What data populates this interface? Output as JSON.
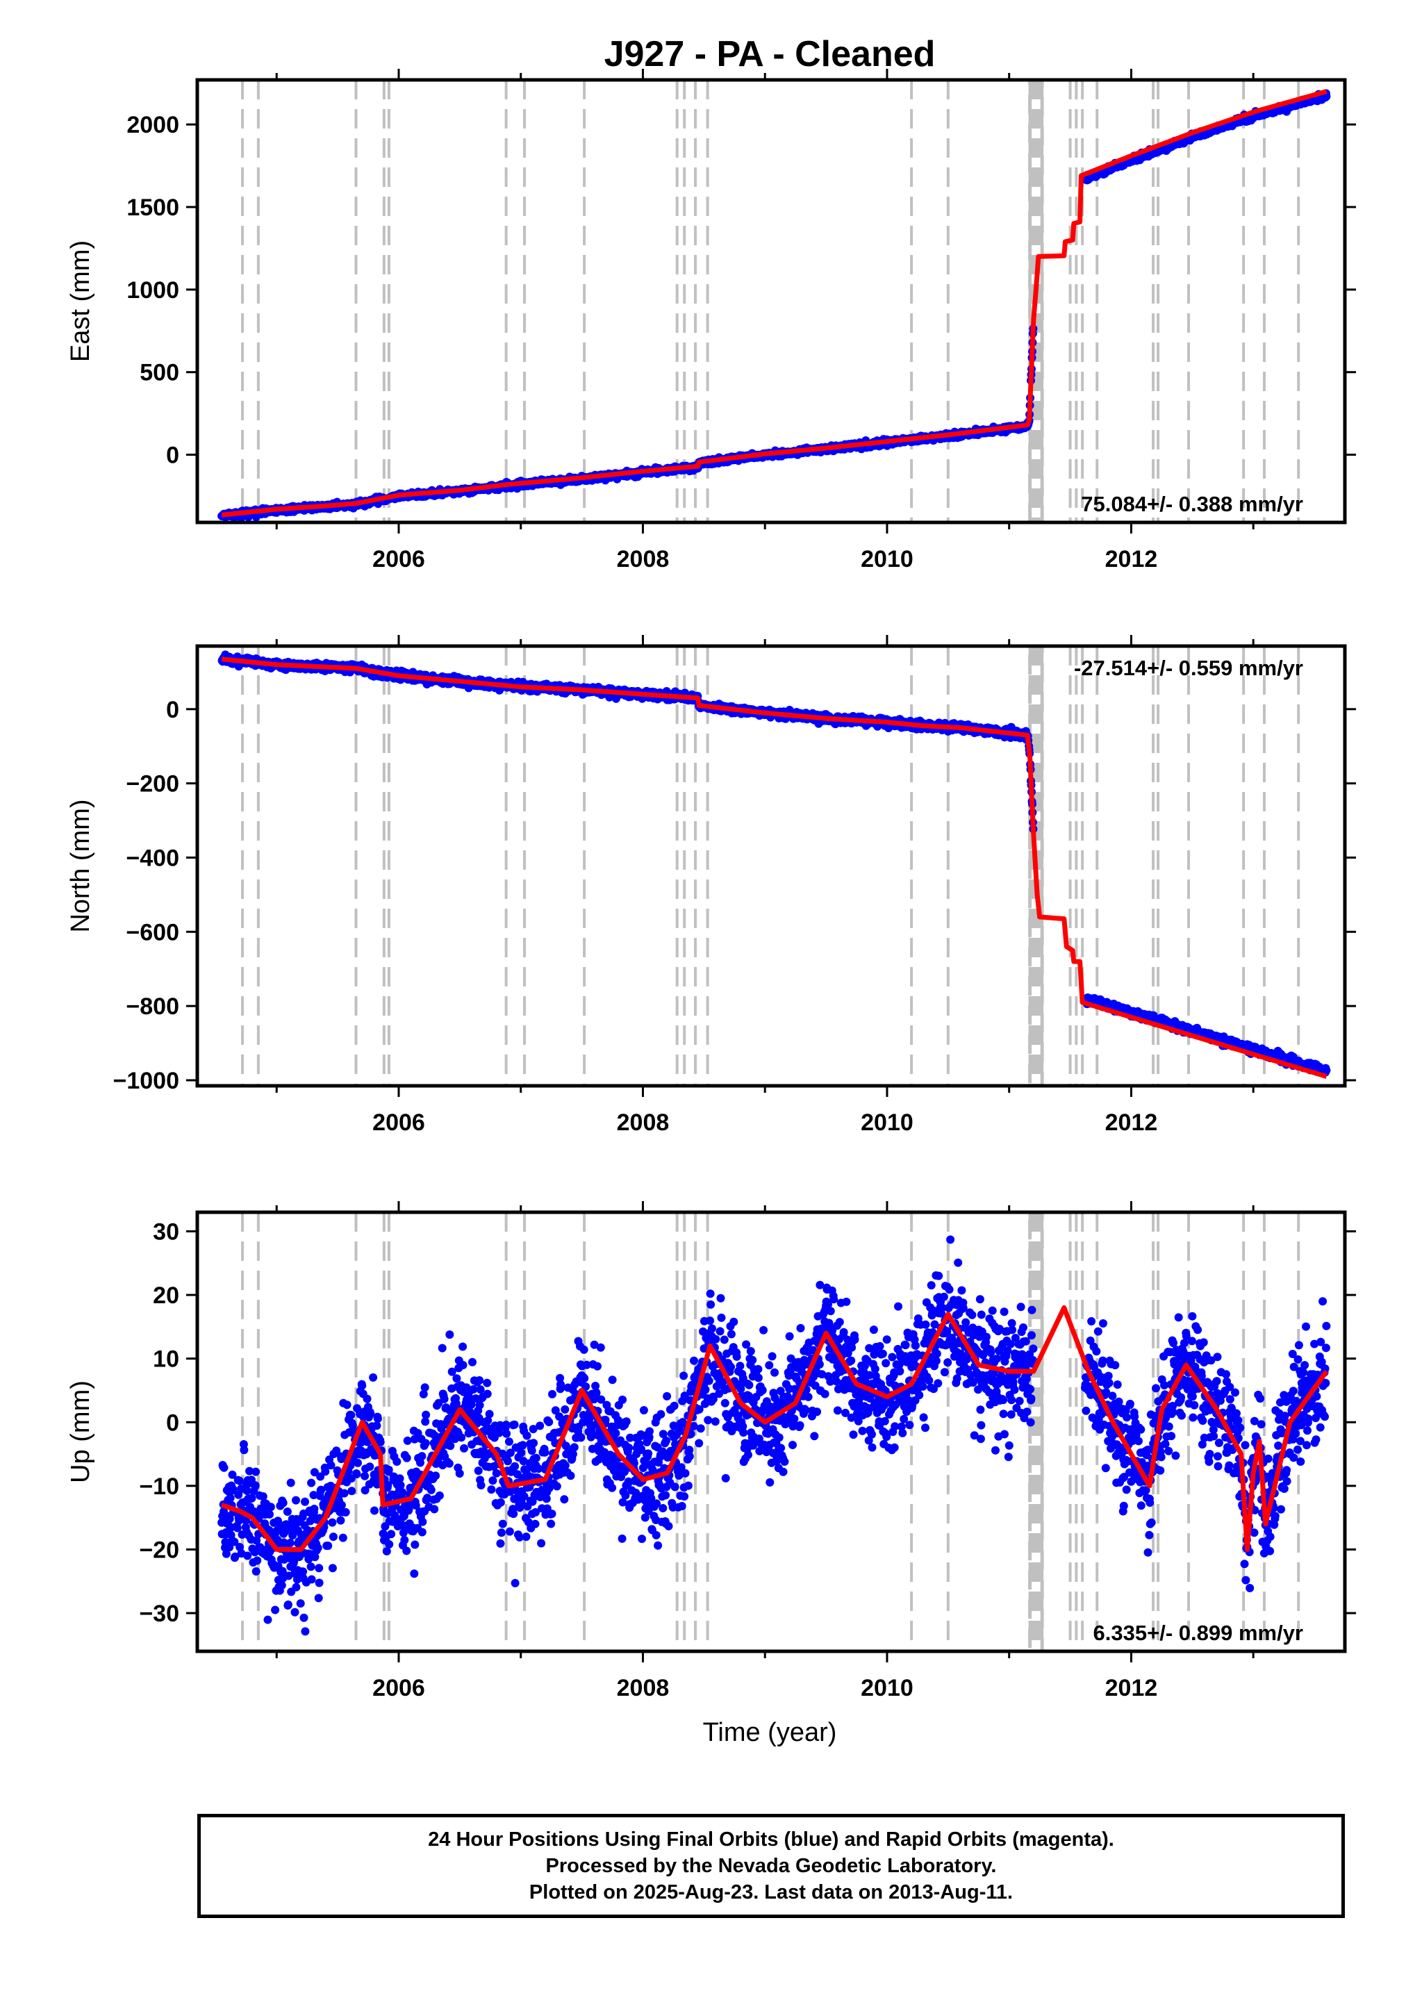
{
  "title": "J927  - PA - Cleaned",
  "x_axis_label": "Time (year)",
  "colors": {
    "final_orbits": "#0000ff",
    "model_fit": "#ff0000",
    "event_lines": "#c0c0c0",
    "axes": "#000000"
  },
  "footer": {
    "line1": "24 Hour Positions Using Final Orbits (blue) and Rapid Orbits (magenta).",
    "line2": "Processed by the Nevada Geodetic Laboratory.",
    "line3": "Plotted on 2025-Aug-23. Last data on 2013-Aug-11."
  },
  "chart_data": [
    {
      "type": "scatter",
      "component": "East",
      "ylabel": "East (mm)",
      "xlim": [
        2004.35,
        2013.75
      ],
      "ylim": [
        -410,
        2270
      ],
      "yticks": [
        0,
        500,
        1000,
        1500,
        2000
      ],
      "xticks": [
        2006,
        2008,
        2010,
        2012
      ],
      "rate_label": "75.084+/- 0.388 mm/yr",
      "rate_position": "bottom-right",
      "model_fit": [
        [
          2004.55,
          -365
        ],
        [
          2005.0,
          -330
        ],
        [
          2005.4,
          -310
        ],
        [
          2005.65,
          -295
        ],
        [
          2006.0,
          -245
        ],
        [
          2006.5,
          -215
        ],
        [
          2006.9,
          -180
        ],
        [
          2007.5,
          -140
        ],
        [
          2008.0,
          -100
        ],
        [
          2008.45,
          -70
        ],
        [
          2008.46,
          -45
        ],
        [
          2009.0,
          5
        ],
        [
          2009.5,
          40
        ],
        [
          2010.0,
          80
        ],
        [
          2010.5,
          120
        ],
        [
          2011.15,
          180
        ],
        [
          2011.165,
          210
        ],
        [
          2011.2,
          820
        ],
        [
          2011.22,
          1000
        ],
        [
          2011.24,
          1200
        ],
        [
          2011.45,
          1205
        ],
        [
          2011.46,
          1290
        ],
        [
          2011.52,
          1300
        ],
        [
          2011.53,
          1400
        ],
        [
          2011.58,
          1410
        ],
        [
          2011.59,
          1690
        ],
        [
          2012.0,
          1810
        ],
        [
          2012.5,
          1950
        ],
        [
          2013.0,
          2075
        ],
        [
          2013.6,
          2200
        ]
      ],
      "observed": {
        "start": 2004.55,
        "end": 2013.6,
        "noise_mm": 8,
        "gap": [
          2011.2,
          2011.62
        ],
        "offset_before": -6,
        "offset_after": -25
      }
    },
    {
      "type": "scatter",
      "component": "North",
      "ylabel": "North (mm)",
      "xlim": [
        2004.35,
        2013.75
      ],
      "ylim": [
        -1015,
        170
      ],
      "yticks": [
        -1000,
        -800,
        -600,
        -400,
        -200,
        0
      ],
      "xticks": [
        2006,
        2008,
        2010,
        2012
      ],
      "rate_label": "-27.514+/- 0.559 mm/yr",
      "rate_position": "top-right",
      "model_fit": [
        [
          2004.55,
          135
        ],
        [
          2005.0,
          120
        ],
        [
          2005.65,
          110
        ],
        [
          2006.0,
          90
        ],
        [
          2006.5,
          75
        ],
        [
          2007.0,
          60
        ],
        [
          2007.5,
          52
        ],
        [
          2008.0,
          40
        ],
        [
          2008.45,
          30
        ],
        [
          2008.46,
          10
        ],
        [
          2009.0,
          -10
        ],
        [
          2009.5,
          -25
        ],
        [
          2010.0,
          -35
        ],
        [
          2010.3,
          -45
        ],
        [
          2010.6,
          -50
        ],
        [
          2011.15,
          -70
        ],
        [
          2011.17,
          -130
        ],
        [
          2011.2,
          -340
        ],
        [
          2011.23,
          -500
        ],
        [
          2011.25,
          -560
        ],
        [
          2011.45,
          -565
        ],
        [
          2011.47,
          -640
        ],
        [
          2011.52,
          -650
        ],
        [
          2011.53,
          -680
        ],
        [
          2011.58,
          -680
        ],
        [
          2011.6,
          -790
        ],
        [
          2012.0,
          -830
        ],
        [
          2012.5,
          -880
        ],
        [
          2013.0,
          -930
        ],
        [
          2013.6,
          -990
        ]
      ],
      "observed": {
        "start": 2004.55,
        "end": 2013.6,
        "noise_mm": 5,
        "gap": [
          2011.2,
          2011.62
        ],
        "offset_before": 0,
        "offset_after": 12
      }
    },
    {
      "type": "scatter",
      "component": "Up",
      "ylabel": "Up (mm)",
      "xlim": [
        2004.35,
        2013.75
      ],
      "ylim": [
        -36,
        33
      ],
      "yticks": [
        -30,
        -20,
        -10,
        0,
        10,
        20,
        30
      ],
      "xticks": [
        2006,
        2008,
        2010,
        2012
      ],
      "rate_label": "6.335+/- 0.899 mm/yr",
      "rate_position": "bottom-right",
      "model_fit": [
        [
          2004.55,
          -13
        ],
        [
          2004.7,
          -14
        ],
        [
          2004.8,
          -15
        ],
        [
          2005.0,
          -20
        ],
        [
          2005.2,
          -20
        ],
        [
          2005.4,
          -15
        ],
        [
          2005.6,
          -5
        ],
        [
          2005.7,
          0
        ],
        [
          2005.85,
          -5
        ],
        [
          2005.87,
          -13
        ],
        [
          2006.1,
          -12
        ],
        [
          2006.5,
          2
        ],
        [
          2006.8,
          -5
        ],
        [
          2006.9,
          -10
        ],
        [
          2007.2,
          -9
        ],
        [
          2007.5,
          5
        ],
        [
          2007.8,
          -5
        ],
        [
          2008.0,
          -9
        ],
        [
          2008.2,
          -8
        ],
        [
          2008.35,
          -2
        ],
        [
          2008.55,
          12
        ],
        [
          2008.8,
          3
        ],
        [
          2009.0,
          0
        ],
        [
          2009.25,
          3
        ],
        [
          2009.5,
          14
        ],
        [
          2009.75,
          6
        ],
        [
          2010.0,
          4
        ],
        [
          2010.2,
          6
        ],
        [
          2010.5,
          17
        ],
        [
          2010.75,
          9
        ],
        [
          2011.0,
          8
        ],
        [
          2011.2,
          8
        ],
        [
          2011.45,
          18
        ],
        [
          2011.65,
          8
        ],
        [
          2011.85,
          0
        ],
        [
          2012.0,
          -5
        ],
        [
          2012.15,
          -10
        ],
        [
          2012.25,
          2
        ],
        [
          2012.45,
          9
        ],
        [
          2012.7,
          2
        ],
        [
          2012.9,
          -5
        ],
        [
          2012.95,
          -20
        ],
        [
          2013.0,
          -8
        ],
        [
          2013.05,
          -3
        ],
        [
          2013.1,
          -16
        ],
        [
          2013.3,
          0
        ],
        [
          2013.6,
          8
        ]
      ],
      "observed": {
        "start": 2004.55,
        "end": 2013.6,
        "noise_mm": 4.5,
        "gap": [
          2011.2,
          2011.62
        ],
        "offset_before": 0,
        "offset_after": 0
      }
    }
  ],
  "event_lines": [
    2004.72,
    2004.85,
    2005.65,
    2005.88,
    2005.92,
    2006.88,
    2007.03,
    2007.52,
    2008.28,
    2008.34,
    2008.43,
    2008.53,
    2010.2,
    2010.5,
    2011.22,
    2011.5,
    2011.55,
    2011.6,
    2011.72,
    2012.18,
    2012.22,
    2012.47,
    2012.92,
    2013.09,
    2013.37
  ],
  "event_band": [
    2011.17,
    2011.27
  ]
}
